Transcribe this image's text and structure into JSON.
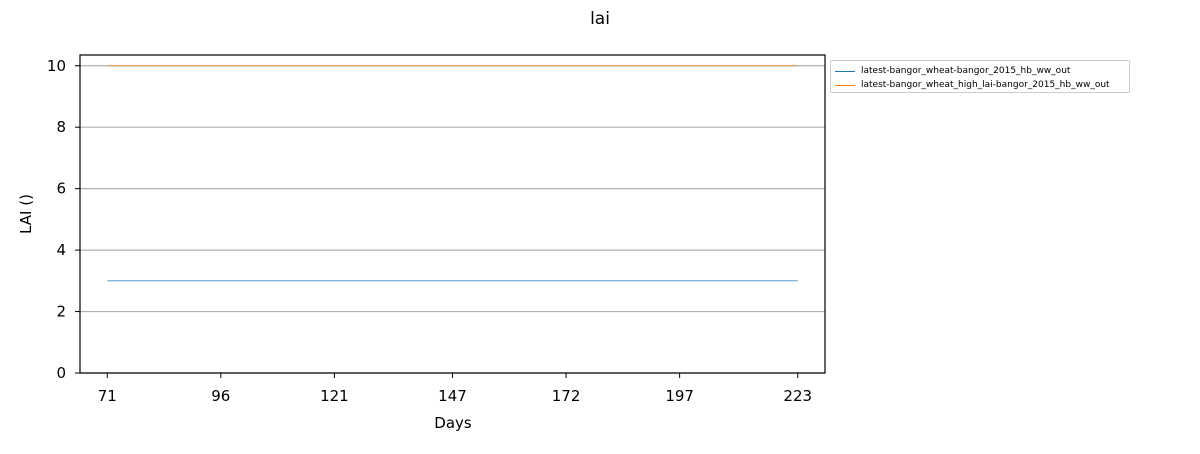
{
  "chart_data": {
    "type": "line",
    "title": "lai",
    "xlabel": "Days",
    "ylabel": "LAI ()",
    "xlim": [
      65,
      229
    ],
    "ylim": [
      0,
      10.35
    ],
    "x_ticks": [
      71,
      96,
      121,
      147,
      172,
      197,
      223
    ],
    "y_ticks": [
      0,
      2,
      4,
      6,
      8,
      10
    ],
    "grid": "y-axis",
    "legend_position": "outside-top-right",
    "series": [
      {
        "name": "latest-bangor_wheat-bangor_2015_hb_ww_out",
        "color": "#1f77b4",
        "x": [
          71,
          223
        ],
        "y": [
          3.0,
          3.0
        ]
      },
      {
        "name": "latest-bangor_wheat_high_lai-bangor_2015_hb_ww_out",
        "color": "#ff7f0e",
        "x": [
          71,
          223
        ],
        "y": [
          10.0,
          10.0
        ]
      }
    ]
  }
}
